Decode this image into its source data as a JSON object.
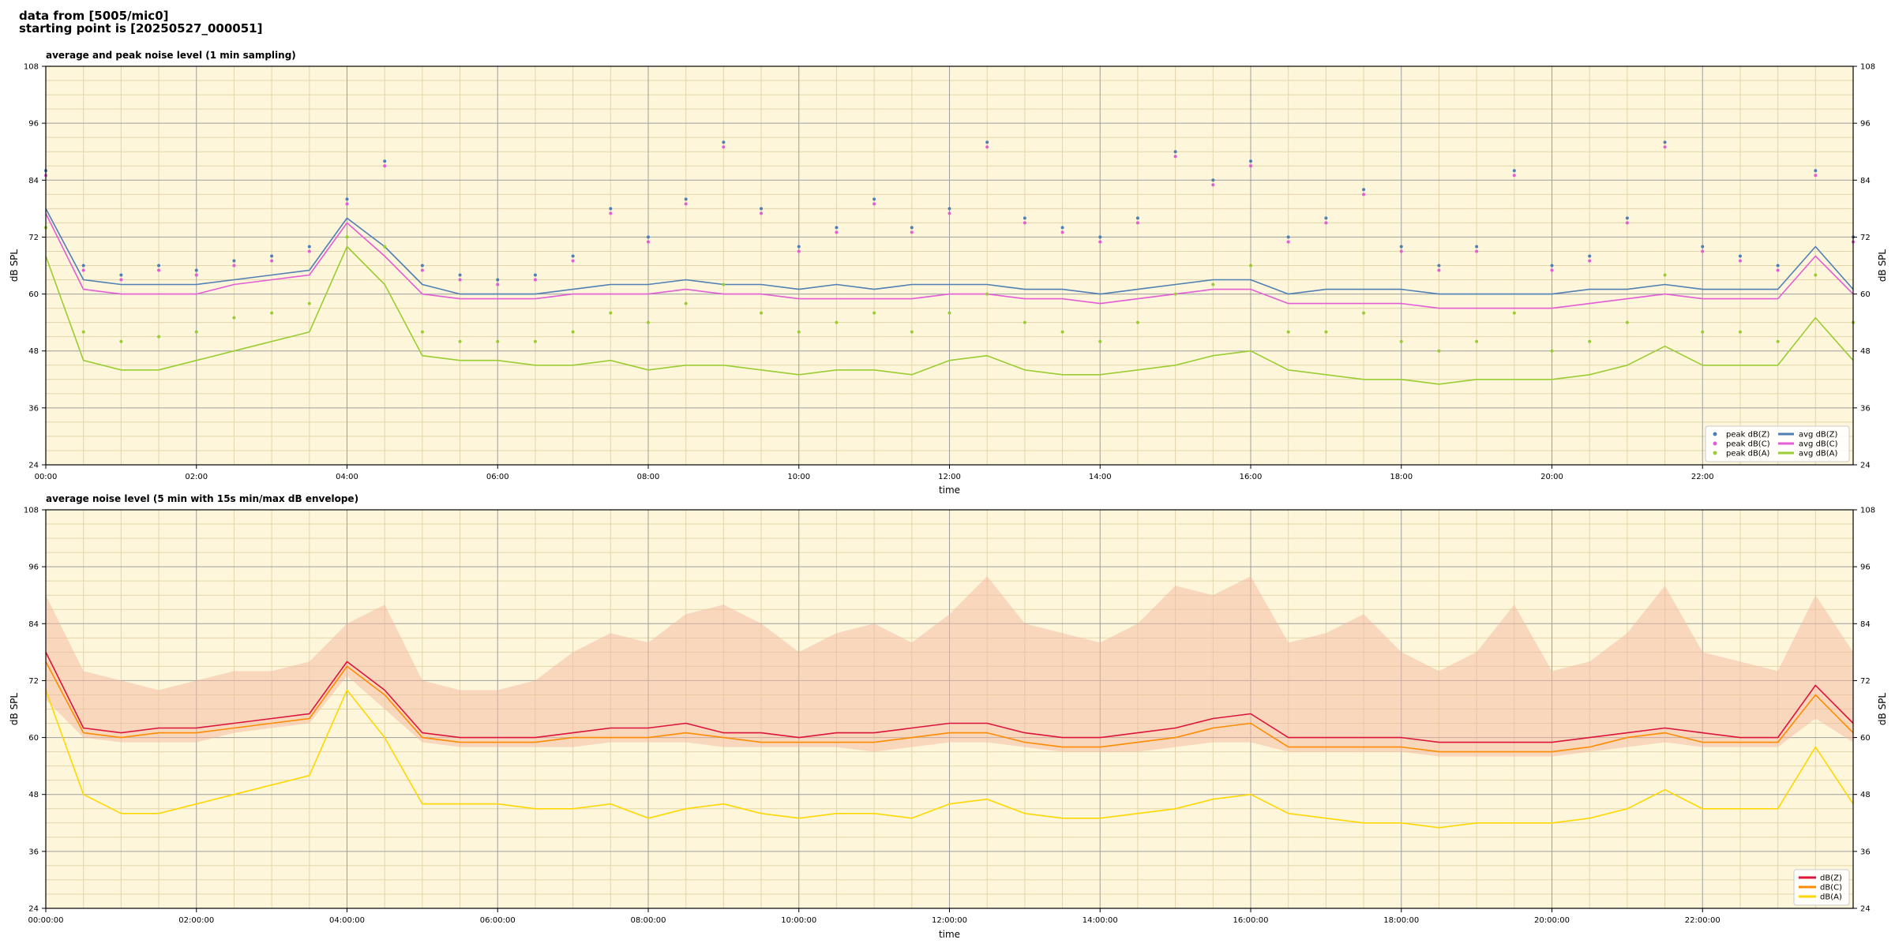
{
  "header": {
    "line1": "data from [5005/mic0]",
    "line2": "starting point is [20250527_000051]"
  },
  "colors": {
    "background": "#fdf6da",
    "grid_major": "#9e9e9e",
    "grid_minor": "#e2d5aa",
    "dBZ": "#4f7fb4",
    "dBC": "#e45cd6",
    "dBA": "#9acd32",
    "env_Z": "#dc143c",
    "env_C": "#ff8c00",
    "env_A": "#ffd700",
    "envelope": "#f4b8a0"
  },
  "chart_data": [
    {
      "type": "line",
      "title": "average and peak noise level (1 min sampling)",
      "xlabel": "time",
      "ylabel": "dB SPL",
      "xlim": [
        "00:00",
        "24:00"
      ],
      "x_ticks": [
        "00:00",
        "02:00",
        "04:00",
        "06:00",
        "08:00",
        "10:00",
        "12:00",
        "14:00",
        "16:00",
        "18:00",
        "20:00",
        "22:00"
      ],
      "ylim": [
        24,
        108
      ],
      "y_ticks": [
        24,
        36,
        48,
        60,
        72,
        84,
        96,
        108
      ],
      "grid": true,
      "legend_position": "bottom-right",
      "x_hours": [
        0,
        0.5,
        1,
        1.5,
        2,
        2.5,
        3,
        3.5,
        4,
        4.5,
        5,
        5.5,
        6,
        6.5,
        7,
        7.5,
        8,
        8.5,
        9,
        9.5,
        10,
        10.5,
        11,
        11.5,
        12,
        12.5,
        13,
        13.5,
        14,
        14.5,
        15,
        15.5,
        16,
        16.5,
        17,
        17.5,
        18,
        18.5,
        19,
        19.5,
        20,
        20.5,
        21,
        21.5,
        22,
        22.5,
        23,
        23.5,
        24
      ],
      "series": [
        {
          "name": "avg dB(Z)",
          "kind": "line",
          "color_key": "dBZ",
          "values": [
            78,
            63,
            62,
            62,
            62,
            63,
            64,
            65,
            76,
            70,
            62,
            60,
            60,
            60,
            61,
            62,
            62,
            63,
            62,
            62,
            61,
            62,
            61,
            62,
            62,
            62,
            61,
            61,
            60,
            61,
            62,
            63,
            63,
            60,
            61,
            61,
            61,
            60,
            60,
            60,
            60,
            61,
            61,
            62,
            61,
            61,
            61,
            70,
            61
          ]
        },
        {
          "name": "avg dB(C)",
          "kind": "line",
          "color_key": "dBC",
          "values": [
            77,
            61,
            60,
            60,
            60,
            62,
            63,
            64,
            75,
            68,
            60,
            59,
            59,
            59,
            60,
            60,
            60,
            61,
            60,
            60,
            59,
            59,
            59,
            59,
            60,
            60,
            59,
            59,
            58,
            59,
            60,
            61,
            61,
            58,
            58,
            58,
            58,
            57,
            57,
            57,
            57,
            58,
            59,
            60,
            59,
            59,
            59,
            68,
            60
          ]
        },
        {
          "name": "avg dB(A)",
          "kind": "line",
          "color_key": "dBA",
          "values": [
            68,
            46,
            44,
            44,
            46,
            48,
            50,
            52,
            70,
            62,
            47,
            46,
            46,
            45,
            45,
            46,
            44,
            45,
            45,
            44,
            43,
            44,
            44,
            43,
            46,
            47,
            44,
            43,
            43,
            44,
            45,
            47,
            48,
            44,
            43,
            42,
            42,
            41,
            42,
            42,
            42,
            43,
            45,
            49,
            45,
            45,
            45,
            55,
            46
          ]
        },
        {
          "name": "peak dB(Z)",
          "kind": "scatter",
          "color_key": "dBZ",
          "values": [
            86,
            66,
            64,
            66,
            65,
            67,
            68,
            70,
            80,
            88,
            66,
            64,
            63,
            64,
            68,
            78,
            72,
            80,
            92,
            78,
            70,
            74,
            80,
            74,
            78,
            92,
            76,
            74,
            72,
            76,
            90,
            84,
            88,
            72,
            76,
            82,
            70,
            66,
            70,
            86,
            66,
            68,
            76,
            92,
            70,
            68,
            66,
            86,
            72
          ]
        },
        {
          "name": "peak dB(C)",
          "kind": "scatter",
          "color_key": "dBC",
          "values": [
            85,
            65,
            63,
            65,
            64,
            66,
            67,
            69,
            79,
            87,
            65,
            63,
            62,
            63,
            67,
            77,
            71,
            79,
            91,
            77,
            69,
            73,
            79,
            73,
            77,
            91,
            75,
            73,
            71,
            75,
            89,
            83,
            87,
            71,
            75,
            81,
            69,
            65,
            69,
            85,
            65,
            67,
            75,
            91,
            69,
            67,
            65,
            85,
            71
          ]
        },
        {
          "name": "peak dB(A)",
          "kind": "scatter",
          "color_key": "dBA",
          "values": [
            74,
            52,
            50,
            51,
            52,
            55,
            56,
            58,
            72,
            70,
            52,
            50,
            50,
            50,
            52,
            56,
            54,
            58,
            62,
            56,
            52,
            54,
            56,
            52,
            56,
            60,
            54,
            52,
            50,
            54,
            60,
            62,
            66,
            52,
            52,
            56,
            50,
            48,
            50,
            56,
            48,
            50,
            54,
            64,
            52,
            52,
            50,
            64,
            54
          ]
        }
      ]
    },
    {
      "type": "line",
      "title": "average noise level (5 min with 15s min/max dB envelope)",
      "xlabel": "time",
      "ylabel": "dB SPL",
      "xlim": [
        "00:00:00",
        "24:00:00"
      ],
      "x_ticks": [
        "00:00:00",
        "02:00:00",
        "04:00:00",
        "06:00:00",
        "08:00:00",
        "10:00:00",
        "12:00:00",
        "14:00:00",
        "16:00:00",
        "18:00:00",
        "20:00:00",
        "22:00:00"
      ],
      "ylim": [
        24,
        108
      ],
      "y_ticks": [
        24,
        36,
        48,
        60,
        72,
        84,
        96,
        108
      ],
      "grid": true,
      "legend_position": "bottom-right",
      "x_hours": [
        0,
        0.5,
        1,
        1.5,
        2,
        2.5,
        3,
        3.5,
        4,
        4.5,
        5,
        5.5,
        6,
        6.5,
        7,
        7.5,
        8,
        8.5,
        9,
        9.5,
        10,
        10.5,
        11,
        11.5,
        12,
        12.5,
        13,
        13.5,
        14,
        14.5,
        15,
        15.5,
        16,
        16.5,
        17,
        17.5,
        18,
        18.5,
        19,
        19.5,
        20,
        20.5,
        21,
        21.5,
        22,
        22.5,
        23,
        23.5,
        24
      ],
      "envelope": {
        "min": [
          68,
          60,
          59,
          59,
          59,
          61,
          62,
          63,
          73,
          66,
          59,
          58,
          58,
          58,
          58,
          59,
          59,
          59,
          58,
          58,
          58,
          58,
          57,
          58,
          59,
          59,
          58,
          57,
          57,
          57,
          58,
          59,
          59,
          57,
          57,
          57,
          57,
          56,
          56,
          56,
          56,
          57,
          58,
          59,
          58,
          58,
          58,
          64,
          59
        ],
        "max": [
          90,
          74,
          72,
          70,
          72,
          74,
          74,
          76,
          84,
          88,
          72,
          70,
          70,
          72,
          78,
          82,
          80,
          86,
          88,
          84,
          78,
          82,
          84,
          80,
          86,
          94,
          84,
          82,
          80,
          84,
          92,
          90,
          94,
          80,
          82,
          86,
          78,
          74,
          78,
          88,
          74,
          76,
          82,
          92,
          78,
          76,
          74,
          90,
          78
        ]
      },
      "series": [
        {
          "name": "dB(Z)",
          "color_key": "env_Z",
          "values": [
            78,
            62,
            61,
            62,
            62,
            63,
            64,
            65,
            76,
            70,
            61,
            60,
            60,
            60,
            61,
            62,
            62,
            63,
            61,
            61,
            60,
            61,
            61,
            62,
            63,
            63,
            61,
            60,
            60,
            61,
            62,
            64,
            65,
            60,
            60,
            60,
            60,
            59,
            59,
            59,
            59,
            60,
            61,
            62,
            61,
            60,
            60,
            71,
            63
          ]
        },
        {
          "name": "dB(C)",
          "color_key": "env_C",
          "values": [
            76,
            61,
            60,
            61,
            61,
            62,
            63,
            64,
            75,
            69,
            60,
            59,
            59,
            59,
            60,
            60,
            60,
            61,
            60,
            59,
            59,
            59,
            59,
            60,
            61,
            61,
            59,
            58,
            58,
            59,
            60,
            62,
            63,
            58,
            58,
            58,
            58,
            57,
            57,
            57,
            57,
            58,
            60,
            61,
            59,
            59,
            59,
            69,
            61
          ]
        },
        {
          "name": "dB(A)",
          "color_key": "env_A",
          "values": [
            70,
            48,
            44,
            44,
            46,
            48,
            50,
            52,
            70,
            60,
            46,
            46,
            46,
            45,
            45,
            46,
            43,
            45,
            46,
            44,
            43,
            44,
            44,
            43,
            46,
            47,
            44,
            43,
            43,
            44,
            45,
            47,
            48,
            44,
            43,
            42,
            42,
            41,
            42,
            42,
            42,
            43,
            45,
            49,
            45,
            45,
            45,
            58,
            46
          ]
        }
      ]
    }
  ]
}
